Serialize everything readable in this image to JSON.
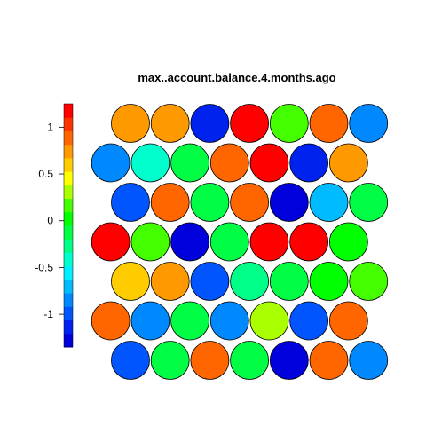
{
  "chart_data": {
    "type": "heatmap",
    "layout": "hexagonal",
    "title": "max..account.balance.4.months.ago",
    "rows": 7,
    "cols": 7,
    "colorbar": {
      "min": -1.35,
      "max": 1.25,
      "ticks": [
        1,
        0.5,
        0,
        -0.5,
        -1
      ],
      "tick_labels": [
        "1",
        "0.5",
        "0",
        "-0.5",
        "-1"
      ],
      "colors": [
        "#0000dd",
        "#0022ee",
        "#0055ff",
        "#0088ff",
        "#00bbff",
        "#00eeff",
        "#00ffcc",
        "#00ff88",
        "#00ff44",
        "#00ff00",
        "#44ff00",
        "#aaff00",
        "#ffff00",
        "#ffcc00",
        "#ff9900",
        "#ff6600",
        "#ff3300",
        "#ff0000"
      ]
    },
    "cells": [
      [
        0.75,
        0.75,
        -1.15,
        1.15,
        0.2,
        0.95,
        -0.85
      ],
      [
        -0.85,
        -0.4,
        -0.1,
        0.95,
        1.15,
        -1.1,
        0.75
      ],
      [
        -1.05,
        0.9,
        -0.1,
        0.95,
        -1.25,
        -0.65,
        -0.1
      ],
      [
        1.15,
        0.1,
        -1.25,
        -0.1,
        1.15,
        1.15,
        0.05
      ],
      [
        0.6,
        0.75,
        -1.05,
        -0.2,
        -0.1,
        0.0,
        0.2
      ],
      [
        0.95,
        -0.85,
        -0.1,
        -0.85,
        0.35,
        -1.05,
        0.9
      ],
      [
        -1.05,
        -0.15,
        0.95,
        -0.1,
        -1.25,
        0.9,
        -0.85
      ]
    ]
  }
}
